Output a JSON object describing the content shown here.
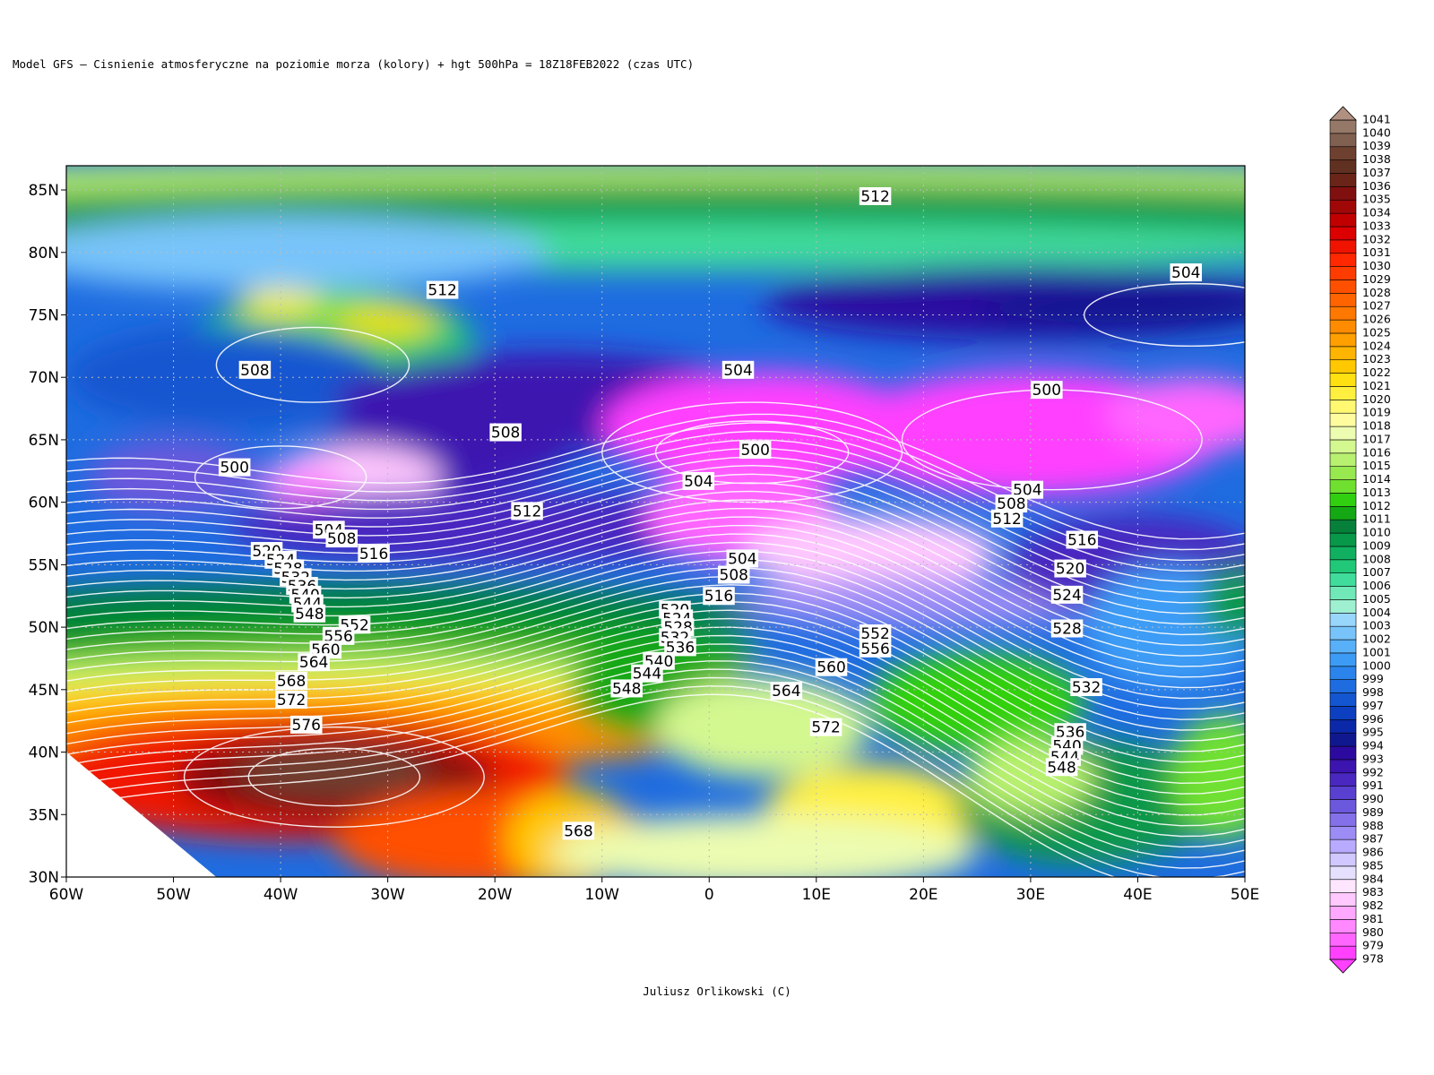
{
  "map": {
    "title": "Model GFS – Cisnienie atmosferyczne na poziomie morza (kolory) + hgt 500hPa   = 18Z18FEB2022 (czas UTC)",
    "footer": "Juliusz Orlikowski (C)",
    "lat_labels": [
      "30N",
      "35N",
      "40N",
      "45N",
      "50N",
      "55N",
      "60N",
      "65N",
      "70N",
      "75N",
      "80N",
      "85N"
    ],
    "lon_labels": [
      "60W",
      "50W",
      "40W",
      "30W",
      "20W",
      "10W",
      "0",
      "10E",
      "20E",
      "30E",
      "40E",
      "50E"
    ],
    "colorbar": {
      "levels": [
        978,
        979,
        980,
        981,
        982,
        983,
        984,
        985,
        986,
        987,
        988,
        989,
        990,
        991,
        992,
        993,
        994,
        995,
        996,
        997,
        998,
        999,
        1000,
        1001,
        1002,
        1003,
        1004,
        1005,
        1006,
        1007,
        1008,
        1009,
        1010,
        1011,
        1012,
        1013,
        1014,
        1015,
        1016,
        1017,
        1018,
        1019,
        1020,
        1021,
        1022,
        1023,
        1024,
        1025,
        1026,
        1027,
        1028,
        1029,
        1030,
        1031,
        1032,
        1033,
        1034,
        1035,
        1036,
        1037,
        1038,
        1039,
        1040,
        1041
      ],
      "colors": [
        "#ff40ff",
        "#ff66ff",
        "#ff88ff",
        "#ffa8ff",
        "#ffc8ff",
        "#ffe6ff",
        "#e6e0ff",
        "#d0c8ff",
        "#b8aaff",
        "#9c8cf5",
        "#8470e8",
        "#6c58dc",
        "#5a40d0",
        "#4a28c0",
        "#3c14b0",
        "#2c0aa0",
        "#101890",
        "#0a28a8",
        "#0c40c0",
        "#1456d0",
        "#1e6ce0",
        "#2a84ec",
        "#3c9cf5",
        "#58b0f8",
        "#78c4fa",
        "#98d6fc",
        "#9ef0d0",
        "#70e8b8",
        "#40dc9c",
        "#20c878",
        "#10b060",
        "#08984a",
        "#06803a",
        "#14a814",
        "#30d010",
        "#70e030",
        "#98e850",
        "#b8f070",
        "#d4f890",
        "#ecfcb0",
        "#fffca0",
        "#fff870",
        "#fff040",
        "#ffe010",
        "#ffc800",
        "#ffb400",
        "#ffa000",
        "#ff8c00",
        "#ff7800",
        "#ff6400",
        "#ff5000",
        "#ff3c00",
        "#ff2800",
        "#f01400",
        "#dc0000",
        "#c00000",
        "#a00808",
        "#801010",
        "#6a2418",
        "#603020",
        "#6e4030",
        "#806050",
        "#967868",
        "#b09080"
      ]
    },
    "contour_labels": [
      {
        "label": 512,
        "lon": 15.5,
        "lat": 84.5
      },
      {
        "label": 512,
        "lon": -24.9,
        "lat": 77
      },
      {
        "label": 504,
        "lon": 44.5,
        "lat": 78.4
      },
      {
        "label": 508,
        "lon": -42.4,
        "lat": 70.6
      },
      {
        "label": 504,
        "lon": 2.7,
        "lat": 70.6
      },
      {
        "label": 500,
        "lon": 31.5,
        "lat": 69
      },
      {
        "label": 508,
        "lon": -19,
        "lat": 65.6
      },
      {
        "label": 500,
        "lon": 4.3,
        "lat": 64.2
      },
      {
        "label": 500,
        "lon": -44.3,
        "lat": 62.8
      },
      {
        "label": 504,
        "lon": -1,
        "lat": 61.7
      },
      {
        "label": 504,
        "lon": 29.7,
        "lat": 61
      },
      {
        "label": 508,
        "lon": 28.2,
        "lat": 59.9
      },
      {
        "label": 512,
        "lon": -17,
        "lat": 59.3
      },
      {
        "label": 512,
        "lon": 27.8,
        "lat": 58.7
      },
      {
        "label": 504,
        "lon": -35.5,
        "lat": 57.8
      },
      {
        "label": 508,
        "lon": -34.3,
        "lat": 57.1
      },
      {
        "label": 516,
        "lon": 34.8,
        "lat": 57
      },
      {
        "label": 516,
        "lon": -31.3,
        "lat": 55.9
      },
      {
        "label": 520,
        "lon": -41.3,
        "lat": 56.1
      },
      {
        "label": 524,
        "lon": -40,
        "lat": 55.4
      },
      {
        "label": 528,
        "lon": -39.3,
        "lat": 54.7
      },
      {
        "label": 532,
        "lon": -38.6,
        "lat": 54
      },
      {
        "label": 536,
        "lon": -38,
        "lat": 53.3
      },
      {
        "label": 540,
        "lon": -37.7,
        "lat": 52.6
      },
      {
        "label": 544,
        "lon": -37.5,
        "lat": 51.9
      },
      {
        "label": 504,
        "lon": 3.1,
        "lat": 55.5
      },
      {
        "label": 520,
        "lon": 33.7,
        "lat": 54.7
      },
      {
        "label": 508,
        "lon": 2.3,
        "lat": 54.2
      },
      {
        "label": 524,
        "lon": 33.4,
        "lat": 52.6
      },
      {
        "label": 516,
        "lon": 0.9,
        "lat": 52.5
      },
      {
        "label": 548,
        "lon": -37.3,
        "lat": 51.1
      },
      {
        "label": 552,
        "lon": -33.1,
        "lat": 50.2
      },
      {
        "label": 528,
        "lon": 33.4,
        "lat": 49.9
      },
      {
        "label": 520,
        "lon": -3.2,
        "lat": 51.4
      },
      {
        "label": 524,
        "lon": -3,
        "lat": 50.7
      },
      {
        "label": 528,
        "lon": -2.9,
        "lat": 50
      },
      {
        "label": 532,
        "lon": -3.2,
        "lat": 49.2
      },
      {
        "label": 536,
        "lon": -2.7,
        "lat": 48.4
      },
      {
        "label": 552,
        "lon": 15.5,
        "lat": 49.5
      },
      {
        "label": 556,
        "lon": -34.6,
        "lat": 49.3
      },
      {
        "label": 556,
        "lon": 15.5,
        "lat": 48.3
      },
      {
        "label": 560,
        "lon": -35.8,
        "lat": 48.2
      },
      {
        "label": 564,
        "lon": -36.9,
        "lat": 47.2
      },
      {
        "label": 560,
        "lon": 11.4,
        "lat": 46.8
      },
      {
        "label": 540,
        "lon": -4.7,
        "lat": 47.3
      },
      {
        "label": 544,
        "lon": -5.8,
        "lat": 46.3
      },
      {
        "label": 568,
        "lon": -39,
        "lat": 45.7
      },
      {
        "label": 548,
        "lon": -7.7,
        "lat": 45.1
      },
      {
        "label": 564,
        "lon": 7.2,
        "lat": 44.9
      },
      {
        "label": 532,
        "lon": 35.2,
        "lat": 45.2
      },
      {
        "label": 572,
        "lon": -39,
        "lat": 44.2
      },
      {
        "label": 576,
        "lon": -37.6,
        "lat": 42.2
      },
      {
        "label": 572,
        "lon": 10.9,
        "lat": 42
      },
      {
        "label": 536,
        "lon": 33.7,
        "lat": 41.6
      },
      {
        "label": 540,
        "lon": 33.4,
        "lat": 40.5
      },
      {
        "label": 544,
        "lon": 33.2,
        "lat": 39.6
      },
      {
        "label": 548,
        "lon": 32.9,
        "lat": 38.8
      },
      {
        "label": 568,
        "lon": -12.2,
        "lat": 33.7
      }
    ]
  }
}
